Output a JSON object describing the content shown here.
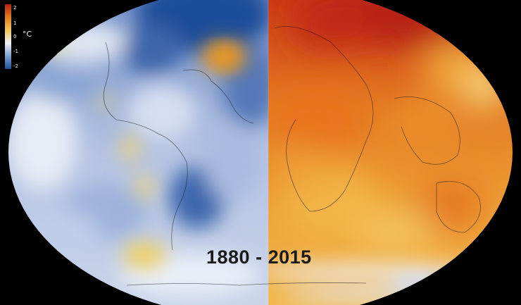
{
  "map": {
    "left_period": "1880",
    "right_period": "2015",
    "separator": "-",
    "colors": {
      "cold_extreme": "#1f4d9a",
      "cold": "#7f9fd0",
      "neutral": "#eef1f8",
      "warm": "#f0c65a",
      "hot": "#e07a1f",
      "hot_extreme": "#b62014",
      "background": "#000000"
    }
  },
  "legend": {
    "unit": "°C",
    "ticks": [
      {
        "label": "2",
        "value": 2
      },
      {
        "label": "1",
        "value": 1
      },
      {
        "label": "0",
        "value": 0
      },
      {
        "label": "-1",
        "value": -1
      },
      {
        "label": "-2",
        "value": -2
      }
    ]
  }
}
